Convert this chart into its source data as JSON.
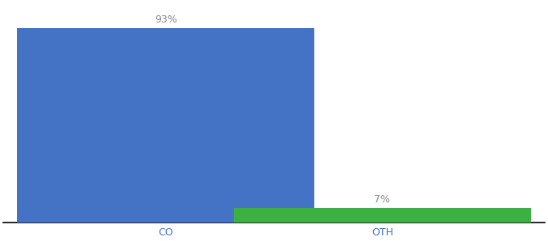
{
  "categories": [
    "CO",
    "OTH"
  ],
  "values": [
    93,
    7
  ],
  "bar_colors": [
    "#4472c4",
    "#3cb043"
  ],
  "labels": [
    "93%",
    "7%"
  ],
  "ylim": [
    0,
    105
  ],
  "background_color": "#ffffff",
  "label_fontsize": 9,
  "tick_fontsize": 9,
  "bar_width": 0.55,
  "bar_positions": [
    0.3,
    0.7
  ]
}
